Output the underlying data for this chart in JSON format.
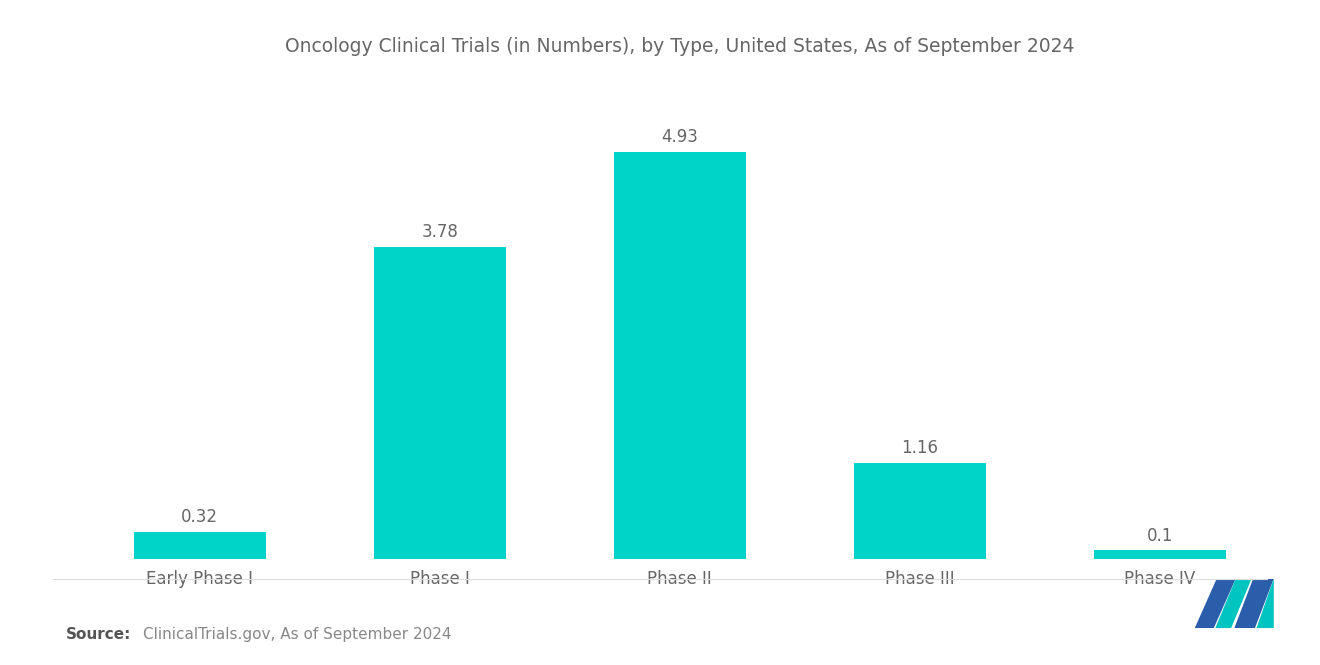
{
  "title": "Oncology Clinical Trials (in Numbers), by Type, United States, As of September 2024",
  "categories": [
    "Early Phase I",
    "Phase I",
    "Phase II",
    "Phase III",
    "Phase IV"
  ],
  "values": [
    0.32,
    3.78,
    4.93,
    1.16,
    0.1
  ],
  "bar_color": "#00D4C8",
  "background_color": "#ffffff",
  "title_color": "#666666",
  "label_color": "#666666",
  "value_color": "#666666",
  "source_bold": "Source:",
  "source_text": "ClinicalTrials.gov, As of September 2024",
  "title_fontsize": 13.5,
  "label_fontsize": 12,
  "value_fontsize": 12,
  "source_fontsize": 11,
  "ylim": [
    0,
    5.8
  ],
  "bar_width": 0.55,
  "logo_navy": "#2A5DAA",
  "logo_teal": "#00C4C0"
}
